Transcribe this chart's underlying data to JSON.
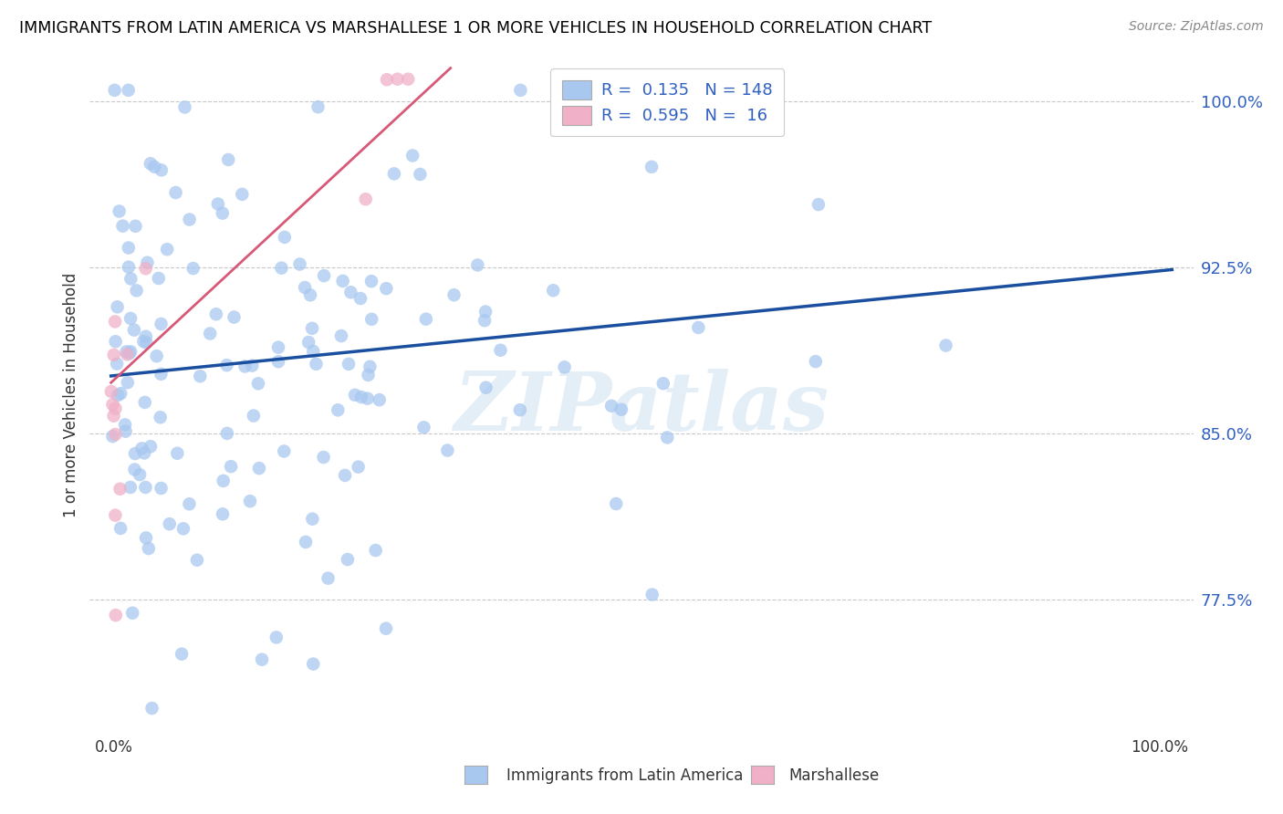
{
  "title": "IMMIGRANTS FROM LATIN AMERICA VS MARSHALLESE 1 OR MORE VEHICLES IN HOUSEHOLD CORRELATION CHART",
  "source": "Source: ZipAtlas.com",
  "ylabel": "1 or more Vehicles in Household",
  "ytick_labels": [
    "77.5%",
    "85.0%",
    "92.5%",
    "100.0%"
  ],
  "ytick_values": [
    0.775,
    0.85,
    0.925,
    1.0
  ],
  "xlim": [
    -0.02,
    1.02
  ],
  "ylim": [
    0.715,
    1.02
  ],
  "legend_entries": [
    {
      "label": "Immigrants from Latin America",
      "R": "0.135",
      "N": "148",
      "color": "#a8c8f0",
      "line_color": "#1a4fa0"
    },
    {
      "label": "Marshallese",
      "R": "0.595",
      "N": "16",
      "color": "#f0b0c8",
      "line_color": "#d85878"
    }
  ],
  "blue_line_x0": 0.0,
  "blue_line_y0": 0.876,
  "blue_line_x1": 1.0,
  "blue_line_y1": 0.924,
  "pink_line_x0": 0.0,
  "pink_line_y0": 0.873,
  "pink_line_x1": 0.32,
  "pink_line_y1": 1.015,
  "watermark": "ZIPatlas",
  "background_color": "#ffffff",
  "blue_seed": 77,
  "pink_seed": 42,
  "n_blue": 148,
  "n_pink": 16,
  "scatter_size": 110,
  "scatter_alpha": 0.75
}
